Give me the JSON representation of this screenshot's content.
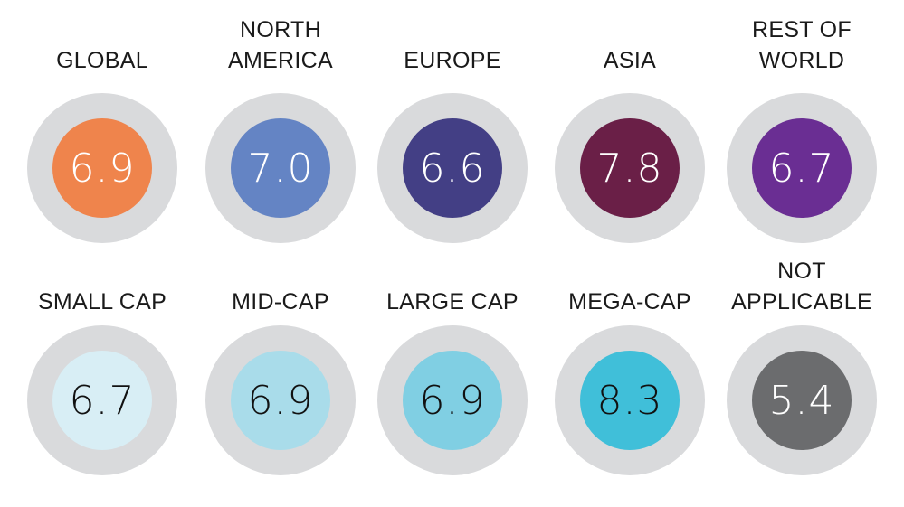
{
  "rows": [
    {
      "items": [
        {
          "label": "GLOBAL",
          "value": "6.9",
          "color": "#ef844c",
          "text_color": "#ffffff"
        },
        {
          "label": "NORTH\nAMERICA",
          "value": "7.0",
          "color": "#6484c4",
          "text_color": "#ffffff"
        },
        {
          "label": "EUROPE",
          "value": "6.6",
          "color": "#433f85",
          "text_color": "#ffffff"
        },
        {
          "label": "ASIA",
          "value": "7.8",
          "color": "#6a1f47",
          "text_color": "#ffffff"
        },
        {
          "label": "REST OF\nWORLD",
          "value": "6.7",
          "color": "#6a2e93",
          "text_color": "#ffffff"
        }
      ]
    },
    {
      "items": [
        {
          "label": "SMALL CAP",
          "value": "6.7",
          "color": "#d8eef5",
          "text_color": "#111111"
        },
        {
          "label": "MID-CAP",
          "value": "6.9",
          "color": "#a9dcea",
          "text_color": "#111111"
        },
        {
          "label": "LARGE CAP",
          "value": "6.9",
          "color": "#80cfe3",
          "text_color": "#111111"
        },
        {
          "label": "MEGA-CAP",
          "value": "8.3",
          "color": "#40bfd9",
          "text_color": "#111111"
        },
        {
          "label": "NOT\nAPPLICABLE",
          "value": "5.4",
          "color": "#6b6c6e",
          "text_color": "#ffffff"
        }
      ]
    }
  ]
}
